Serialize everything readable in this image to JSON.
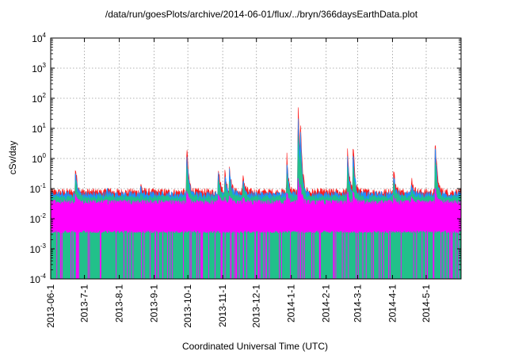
{
  "chart_data": {
    "type": "line",
    "title": "/data/run/goesPlots/archive/2014-06-01/flux/../bryn/366daysEarthData.plot",
    "xlabel": "Coordinated Universal Time (UTC)",
    "ylabel": "cSv/day",
    "yscale": "log",
    "ylim": [
      0.0001,
      10000
    ],
    "xlim": [
      "2013-06-01",
      "2014-06-01"
    ],
    "grid": true,
    "legend": "none",
    "x_ticks": [
      "2013-06-1",
      "2013-7-1",
      "2013-8-1",
      "2013-9-1",
      "2013-10-1",
      "2013-11-1",
      "2013-12-1",
      "2014-1-1",
      "2014-2-1",
      "2014-3-1",
      "2014-4-1",
      "2014-5-1"
    ],
    "y_ticks": [
      {
        "base": "10",
        "exp": "4"
      },
      {
        "base": "10",
        "exp": "3"
      },
      {
        "base": "10",
        "exp": "2"
      },
      {
        "base": "10",
        "exp": "1"
      },
      {
        "base": "10",
        "exp": "0"
      },
      {
        "base": "10",
        "exp": "-1"
      },
      {
        "base": "10",
        "exp": "-2"
      },
      {
        "base": "10",
        "exp": "-3"
      },
      {
        "base": "10",
        "exp": "-4"
      }
    ],
    "series_colors": [
      "#ff1a1a",
      "#1e90ff",
      "#22c08a",
      "#ff00ff"
    ],
    "baseline": {
      "red": 0.065,
      "blue": 0.055,
      "green": 0.045,
      "magenta_top": 0.03,
      "magenta_bottom": 0.004
    },
    "events": [
      {
        "date": "2013-06-23",
        "peak": 0.5
      },
      {
        "date": "2013-07-21",
        "peak": 0.1
      },
      {
        "date": "2013-08-20",
        "peak": 0.12
      },
      {
        "date": "2013-09-30",
        "peak": 3.0
      },
      {
        "date": "2013-10-28",
        "peak": 0.6
      },
      {
        "date": "2013-11-03",
        "peak": 0.35
      },
      {
        "date": "2013-11-07",
        "peak": 0.5
      },
      {
        "date": "2013-11-19",
        "peak": 0.3
      },
      {
        "date": "2013-12-28",
        "peak": 1.2
      },
      {
        "date": "2014-01-07",
        "peak": 120
      },
      {
        "date": "2014-01-09",
        "peak": 30
      },
      {
        "date": "2014-02-20",
        "peak": 2.2
      },
      {
        "date": "2014-02-25",
        "peak": 3.2
      },
      {
        "date": "2014-04-02",
        "peak": 0.4
      },
      {
        "date": "2014-04-18",
        "peak": 0.2
      },
      {
        "date": "2014-05-09",
        "peak": 6.0
      }
    ]
  }
}
